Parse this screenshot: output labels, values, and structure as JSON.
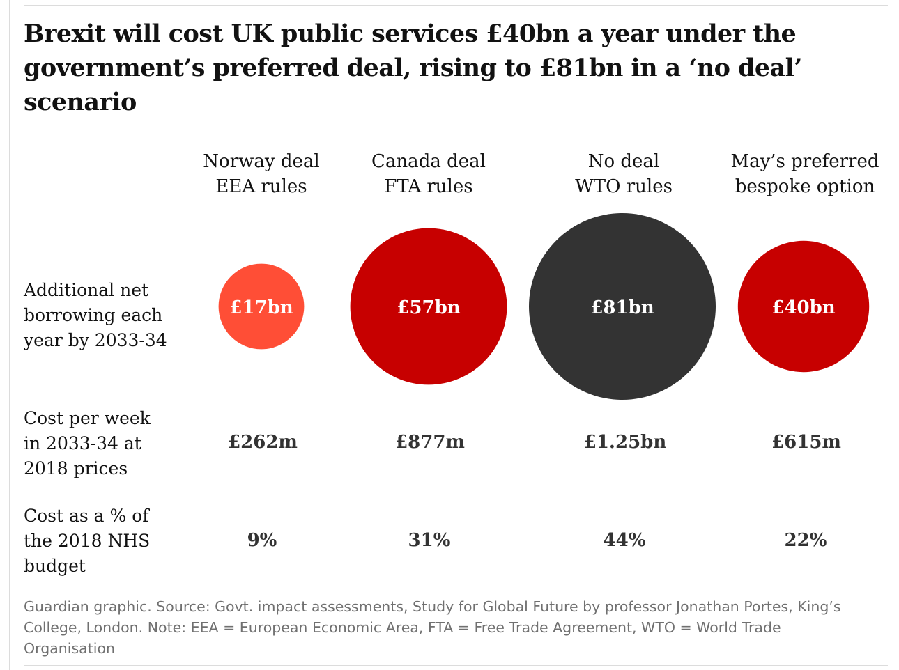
{
  "title_lines": [
    "Brexit will cost UK public services £40bn a year under the",
    "government’s preferred deal, rising to £81bn in a ‘no deal’",
    "scenario"
  ],
  "chart_data": {
    "type": "bubble-table",
    "columns": [
      {
        "name_line1": "Norway deal",
        "name_line2": "EEA rules",
        "borrowing_bn": 17,
        "borrowing_label": "£17bn",
        "color": "#ff4e36",
        "cost_per_week": "£262m",
        "nhs_share": "9%"
      },
      {
        "name_line1": "Canada deal",
        "name_line2": "FTA rules",
        "borrowing_bn": 57,
        "borrowing_label": "£57bn",
        "color": "#c70000",
        "cost_per_week": "£877m",
        "nhs_share": "31%"
      },
      {
        "name_line1": "No deal",
        "name_line2": "WTO rules",
        "borrowing_bn": 81,
        "borrowing_label": "£81bn",
        "color": "#333333",
        "cost_per_week": "£1.25bn",
        "nhs_share": "44%"
      },
      {
        "name_line1": "May’s preferred",
        "name_line2": "bespoke option",
        "borrowing_bn": 40,
        "borrowing_label": "£40bn",
        "color": "#c70000",
        "cost_per_week": "£615m",
        "nhs_share": "22%"
      }
    ],
    "row_labels": {
      "borrowing": [
        "Additional net",
        "borrowing each",
        "year by 2033-34"
      ],
      "cost_per_week": [
        "Cost per week",
        "in 2033-34 at",
        "2018 prices"
      ],
      "nhs_share": [
        "Cost as a % of",
        "the 2018 NHS",
        "budget"
      ]
    },
    "bubble_label_color": "#ffffff"
  },
  "footnote_lines": [
    "Guardian graphic. Source: Govt. impact assessments, Study for Global Future by professor Jonathan Portes, King’s",
    "College, London. Note: EEA = European Economic Area, FTA = Free Trade Agreement, WTO = World Trade",
    "Organisation"
  ]
}
